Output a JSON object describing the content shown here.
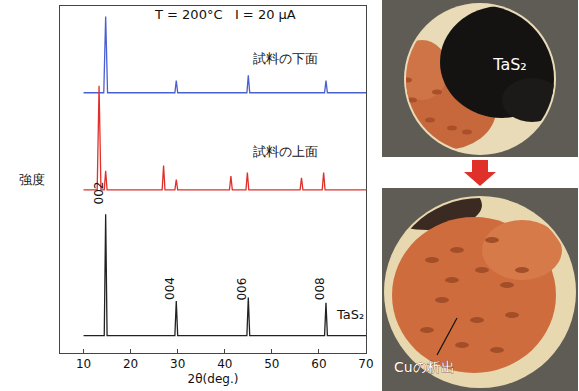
{
  "chart_data": {
    "type": "line",
    "xlabel": "2θ(deg.)",
    "ylabel": "強度",
    "xlim": [
      5,
      70
    ],
    "xticks": [
      10,
      20,
      30,
      40,
      50,
      60,
      70
    ],
    "ylim": [
      0,
      10
    ],
    "yticks": [],
    "tick_labels": "x",
    "grid": false,
    "series": [
      {
        "name": "試料の下面",
        "color": "#4a5fd0",
        "x": [
          10,
          14.3,
          14.7,
          15.1,
          29.4,
          29.7,
          30.0,
          44.7,
          45.0,
          45.3,
          61.2,
          61.5,
          61.8,
          70
        ],
        "values": [
          7.5,
          7.5,
          9.7,
          7.5,
          7.5,
          7.85,
          7.5,
          7.5,
          8.0,
          7.5,
          7.5,
          7.85,
          7.5,
          7.5
        ]
      },
      {
        "name": "試料の上面",
        "color": "#e0302a",
        "x": [
          10,
          12.9,
          13.3,
          13.7,
          14.4,
          14.7,
          15.0,
          26.7,
          27.0,
          27.3,
          29.4,
          29.7,
          30.0,
          41.0,
          41.3,
          41.6,
          44.5,
          44.8,
          45.1,
          56.0,
          56.3,
          56.6,
          60.7,
          61.0,
          61.3,
          70
        ],
        "values": [
          4.7,
          4.7,
          7.7,
          4.7,
          4.7,
          5.25,
          4.7,
          4.7,
          5.4,
          4.7,
          4.7,
          5.0,
          4.7,
          4.7,
          5.1,
          4.7,
          4.7,
          5.2,
          4.7,
          4.7,
          5.05,
          4.7,
          4.7,
          5.2,
          4.7,
          4.7
        ]
      },
      {
        "name": "TaS₂",
        "color": "#222222",
        "x": [
          10,
          14.4,
          14.7,
          15.0,
          29.4,
          29.7,
          30.0,
          44.7,
          45.0,
          45.3,
          61.2,
          61.5,
          61.8,
          70
        ],
        "values": [
          0.5,
          0.5,
          4.0,
          0.5,
          0.5,
          1.5,
          0.5,
          0.5,
          1.6,
          0.5,
          0.5,
          1.45,
          0.5,
          0.5
        ]
      }
    ],
    "annotations": [
      {
        "text": "T = 200°C   I = 20 μA",
        "x": 40,
        "y": 9.75
      },
      {
        "text": "試料の下面",
        "x": 53,
        "y": 8.5
      },
      {
        "text": "試料の上面",
        "x": 53,
        "y": 5.8
      },
      {
        "text": "TaS₂",
        "x": 66.5,
        "y": 1.1
      }
    ],
    "peak_labels": [
      {
        "text": "002",
        "x": 13.3,
        "y": 4.6
      },
      {
        "text": "004",
        "x": 28.4,
        "y": 1.85
      },
      {
        "text": "006",
        "x": 43.6,
        "y": 1.85
      },
      {
        "text": "008",
        "x": 60.1,
        "y": 1.85
      }
    ]
  },
  "photos": [
    {
      "label": "TaS₂"
    },
    {
      "label": "Cuの析出"
    }
  ]
}
